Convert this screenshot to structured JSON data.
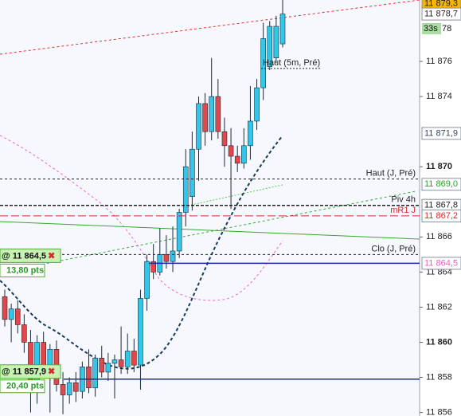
{
  "chart_data": {
    "type": "candlestick",
    "up_color": "#31c6ea",
    "down_color": "#e2474c",
    "open": [
      11862.6,
      11861.3,
      11861.9,
      11861.0,
      11860.0,
      11857.5,
      11860.0,
      11858.6,
      11859.6,
      11857.6,
      11857.0,
      11857.7,
      11857.2,
      11858.6,
      11857.4,
      11859.1,
      11858.3,
      11858.8,
      11859.0,
      11858.6,
      11859.5,
      11858.7,
      11862.5,
      11864.6,
      11864.0,
      11865.0,
      11864.6,
      11865.2,
      11867.4,
      11868.3,
      11871.0,
      11873.6,
      11872.0,
      11874.0,
      11872.0,
      11871.2,
      11870.6,
      11870.2,
      11871.2,
      11872.6,
      11874.5,
      11875.7,
      11876.2,
      11877.0
    ],
    "high": [
      11863.0,
      11862.2,
      11862.4,
      11861.6,
      11860.7,
      11860.4,
      11860.6,
      11859.9,
      11860.1,
      11858.3,
      11858.0,
      11858.3,
      11858.9,
      11859.6,
      11859.3,
      11859.8,
      11859.4,
      11859.3,
      11860.9,
      11860.5,
      11860.2,
      11863.0,
      11865.0,
      11865.6,
      11866.5,
      11866.1,
      11866.6,
      11867.6,
      11871.0,
      11872.0,
      11874.0,
      11874.2,
      11876.2,
      11875.0,
      11872.8,
      11872.2,
      11871.2,
      11872.2,
      11874.6,
      11875.0,
      11878.2,
      11878.3,
      11878.6,
      11879.5
    ],
    "low": [
      11860.9,
      11860.0,
      11860.5,
      11859.4,
      11856.0,
      11856.5,
      11858.4,
      11856.0,
      11857.2,
      11855.9,
      11856.5,
      11856.6,
      11856.8,
      11857.1,
      11856.9,
      11858.0,
      11857.8,
      11856.8,
      11858.2,
      11858.2,
      11858.3,
      11857.3,
      11861.8,
      11863.6,
      11863.8,
      11864.2,
      11864.0,
      11864.8,
      11866.6,
      11867.5,
      11869.2,
      11871.2,
      11871.5,
      11871.6,
      11870.0,
      11867.6,
      11869.7,
      11869.9,
      11870.4,
      11872.1,
      11873.8,
      11875.5,
      11875.9,
      11876.8
    ],
    "close": [
      11861.3,
      11861.9,
      11861.0,
      11860.0,
      11857.5,
      11860.0,
      11858.6,
      11859.6,
      11857.6,
      11857.0,
      11857.7,
      11857.2,
      11858.6,
      11857.4,
      11859.1,
      11858.3,
      11858.8,
      11859.0,
      11858.6,
      11859.5,
      11858.7,
      11862.5,
      11864.6,
      11864.0,
      11865.0,
      11864.6,
      11865.2,
      11867.4,
      11870.0,
      11871.0,
      11873.6,
      11872.0,
      11874.0,
      11872.0,
      11871.2,
      11870.6,
      11870.2,
      11871.2,
      11872.6,
      11874.5,
      11877.3,
      11878.0,
      11878.0,
      11878.7
    ],
    "ylim": [
      11855.8,
      11879.5
    ],
    "yticks": [
      {
        "value": 11876,
        "label": "11 876"
      },
      {
        "value": 11874,
        "label": "11 874"
      },
      {
        "value": 11870,
        "label": "11 870"
      },
      {
        "value": 11866,
        "label": "11 866"
      },
      {
        "value": 11864,
        "label": "11 864"
      },
      {
        "value": 11862,
        "label": "11 862"
      },
      {
        "value": 11860,
        "label": "11 860"
      },
      {
        "value": 11858,
        "label": "11 858"
      },
      {
        "value": 11856,
        "label": "11 856"
      }
    ],
    "levels": [
      {
        "name": "Haut (5m, Pré)",
        "value": 11875.6,
        "color": "#222222"
      },
      {
        "name": "Haut (J, Pré)",
        "value": 11869.3,
        "color": "#222222"
      },
      {
        "name": "Piv 4h",
        "value": 11867.8,
        "color": "#222222"
      },
      {
        "name": "mR1 J",
        "value": 11867.2,
        "color": "#d42a2a"
      },
      {
        "name": "Clo (J, Pré)",
        "value": 11865.0,
        "color": "#222222"
      }
    ],
    "price_tags": [
      {
        "value": 11879.3,
        "label": "11 879,3",
        "color": "#222222",
        "bg": "#f7b500"
      },
      {
        "value": 11878.7,
        "label": "11 878,7",
        "color": "#222222",
        "bg": "#ffffff"
      },
      {
        "value": 11871.9,
        "label": "11 871,9",
        "color": "#334466",
        "bg": "#ffffff"
      },
      {
        "value": 11869.0,
        "label": "11 869,0",
        "color": "#2aa02a",
        "bg": "#ffffff"
      },
      {
        "value": 11867.8,
        "label": "11 867,8",
        "color": "#222222",
        "bg": "#ffffff"
      },
      {
        "value": 11867.2,
        "label": "11 867,2",
        "color": "#d42a2a",
        "bg": "#ffffff"
      },
      {
        "value": 11864.5,
        "label": "11 864,5",
        "color": "#e060c0",
        "bg": "#ffffff"
      }
    ],
    "countdown": {
      "label": "33s",
      "fragment": "78"
    },
    "orders": [
      {
        "price": {
          "value": 11864.5,
          "label": "@ 11 864,5"
        },
        "pts": {
          "value": 13.8,
          "label": "13,80 pts"
        }
      },
      {
        "price": {
          "value": 11857.9,
          "label": "@ 11 857,9"
        },
        "pts": {
          "value": 20.4,
          "label": "20,40 pts"
        }
      }
    ]
  }
}
